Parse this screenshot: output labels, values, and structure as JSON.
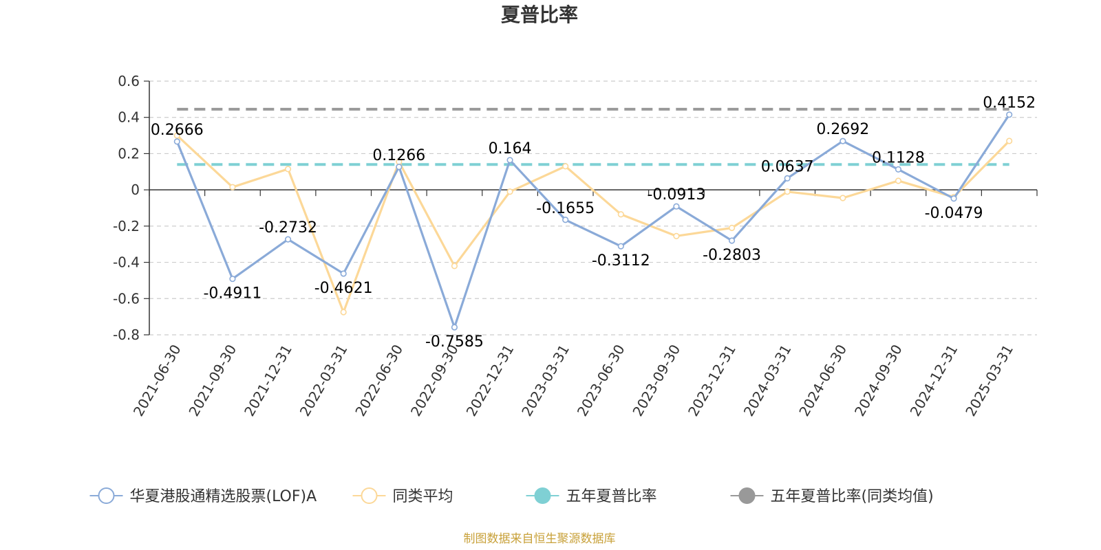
{
  "chart_data": {
    "type": "line",
    "title": "夏普比率",
    "categories": [
      "2021-06-30",
      "2021-09-30",
      "2021-12-31",
      "2022-03-31",
      "2022-06-30",
      "2022-09-30",
      "2022-12-31",
      "2023-03-31",
      "2023-06-30",
      "2023-09-30",
      "2023-12-31",
      "2024-03-31",
      "2024-06-30",
      "2024-09-30",
      "2024-12-31",
      "2025-03-31"
    ],
    "ylim": [
      -0.8,
      0.6
    ],
    "yticks": [
      "0.6",
      "0.4",
      "0.2",
      "0",
      "-0.2",
      "-0.4",
      "-0.6",
      "-0.8"
    ],
    "ytick_values": [
      0.6,
      0.4,
      0.2,
      0,
      -0.2,
      -0.4,
      -0.6,
      -0.8
    ],
    "grid": true,
    "legend_position": "bottom",
    "series": [
      {
        "name": "华夏港股通精选股票(LOF)A",
        "color": "#8aaad8",
        "values": [
          0.2666,
          -0.4911,
          -0.2732,
          -0.4621,
          0.1266,
          -0.7585,
          0.164,
          -0.1655,
          -0.3112,
          -0.0913,
          -0.2803,
          0.0637,
          0.2692,
          0.1128,
          -0.0479,
          0.4152
        ],
        "labels": [
          "0.2666",
          "-0.4911",
          "-0.2732",
          "-0.4621",
          "0.1266",
          "-0.7585",
          "0.164",
          "-0.1655",
          "-0.3112",
          "-0.0913",
          "-0.2803",
          "0.0637",
          "0.2692",
          "0.1128",
          "-0.0479",
          "0.4152"
        ]
      },
      {
        "name": "同类平均",
        "color": "#fcd898",
        "values": [
          0.3,
          0.015,
          0.115,
          -0.675,
          0.155,
          -0.42,
          -0.01,
          0.13,
          -0.135,
          -0.255,
          -0.21,
          -0.01,
          -0.045,
          0.05,
          -0.04,
          0.27
        ]
      }
    ],
    "reference_lines": [
      {
        "name": "五年夏普比率",
        "color": "#7fd0d4",
        "value": 0.14
      },
      {
        "name": "五年夏普比率(同类均值)",
        "color": "#999999",
        "value": 0.445
      }
    ],
    "source_note": "制图数据来自恒生聚源数据库"
  }
}
